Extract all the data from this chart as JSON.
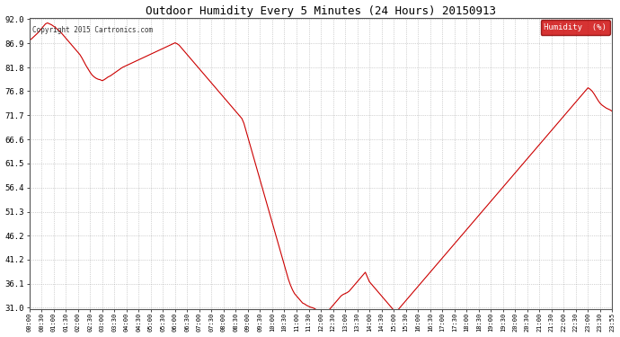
{
  "title": "Outdoor Humidity Every 5 Minutes (24 Hours) 20150913",
  "copyright": "Copyright 2015 Cartronics.com",
  "legend_label": "Humidity  (%)",
  "legend_bg": "#cc0000",
  "line_color": "#cc0000",
  "bg_color": "#ffffff",
  "grid_color": "#999999",
  "ylim": [
    31.0,
    92.0
  ],
  "yticks": [
    31.0,
    36.1,
    41.2,
    46.2,
    51.3,
    56.4,
    61.5,
    66.6,
    71.7,
    76.8,
    81.8,
    86.9,
    92.0
  ],
  "humidity_values": [
    87.5,
    87.8,
    88.2,
    88.6,
    89.0,
    89.5,
    90.0,
    90.5,
    91.0,
    91.2,
    91.0,
    90.8,
    90.5,
    90.2,
    89.8,
    89.5,
    89.0,
    88.5,
    88.0,
    87.5,
    87.0,
    86.5,
    86.0,
    85.5,
    85.0,
    84.5,
    83.8,
    83.0,
    82.2,
    81.5,
    80.8,
    80.2,
    79.8,
    79.5,
    79.3,
    79.2,
    79.0,
    79.2,
    79.5,
    79.8,
    80.0,
    80.3,
    80.6,
    80.9,
    81.2,
    81.5,
    81.8,
    82.0,
    82.2,
    82.4,
    82.6,
    82.8,
    83.0,
    83.2,
    83.4,
    83.6,
    83.8,
    84.0,
    84.2,
    84.4,
    84.6,
    84.8,
    85.0,
    85.2,
    85.4,
    85.6,
    85.8,
    86.0,
    86.2,
    86.4,
    86.6,
    86.8,
    87.0,
    86.8,
    86.5,
    86.0,
    85.5,
    85.0,
    84.5,
    84.0,
    83.5,
    83.0,
    82.5,
    82.0,
    81.5,
    81.0,
    80.5,
    80.0,
    79.5,
    79.0,
    78.5,
    78.0,
    77.5,
    77.0,
    76.5,
    76.0,
    75.5,
    75.0,
    74.5,
    74.0,
    73.5,
    73.0,
    72.5,
    72.0,
    71.5,
    71.0,
    70.0,
    68.5,
    67.0,
    65.5,
    64.0,
    62.5,
    61.0,
    59.5,
    58.0,
    56.5,
    55.0,
    53.5,
    52.0,
    50.5,
    49.0,
    47.5,
    46.0,
    44.5,
    43.0,
    41.5,
    40.0,
    38.5,
    37.0,
    35.8,
    34.8,
    34.0,
    33.5,
    33.0,
    32.5,
    32.0,
    31.8,
    31.5,
    31.3,
    31.1,
    31.0,
    30.8,
    30.5,
    30.3,
    30.1,
    30.0,
    30.0,
    30.2,
    30.5,
    31.0,
    31.5,
    32.0,
    32.5,
    33.0,
    33.5,
    33.8,
    34.0,
    34.2,
    34.5,
    35.0,
    35.5,
    36.0,
    36.5,
    37.0,
    37.5,
    38.0,
    38.5,
    37.5,
    36.5,
    36.0,
    35.5,
    35.0,
    34.5,
    34.0,
    33.5,
    33.0,
    32.5,
    32.0,
    31.5,
    31.0,
    30.5,
    30.0,
    30.5,
    31.0,
    31.5,
    32.0,
    32.5,
    33.0,
    33.5,
    34.0,
    34.5,
    35.0,
    35.5,
    36.0,
    36.5,
    37.0,
    37.5,
    38.0,
    38.5,
    39.0,
    39.5,
    40.0,
    40.5,
    41.0,
    41.5,
    42.0,
    42.5,
    43.0,
    43.5,
    44.0,
    44.5,
    45.0,
    45.5,
    46.0,
    46.5,
    47.0,
    47.5,
    48.0,
    48.5,
    49.0,
    49.5,
    50.0,
    50.5,
    51.0,
    51.5,
    52.0,
    52.5,
    53.0,
    53.5,
    54.0,
    54.5,
    55.0,
    55.5,
    56.0,
    56.5,
    57.0,
    57.5,
    58.0,
    58.5,
    59.0,
    59.5,
    60.0,
    60.5,
    61.0,
    61.5,
    62.0,
    62.5,
    63.0,
    63.5,
    64.0,
    64.5,
    65.0,
    65.5,
    66.0,
    66.5,
    67.0,
    67.5,
    68.0,
    68.5,
    69.0,
    69.5,
    70.0,
    70.5,
    71.0,
    71.5,
    72.0,
    72.5,
    73.0,
    73.5,
    74.0,
    74.5,
    75.0,
    75.5,
    76.0,
    76.5,
    77.0,
    77.5,
    77.2,
    76.8,
    76.2,
    75.5,
    74.8,
    74.2,
    73.8,
    73.5,
    73.2,
    73.0,
    72.8,
    72.5,
    72.2,
    71.9,
    71.7
  ]
}
